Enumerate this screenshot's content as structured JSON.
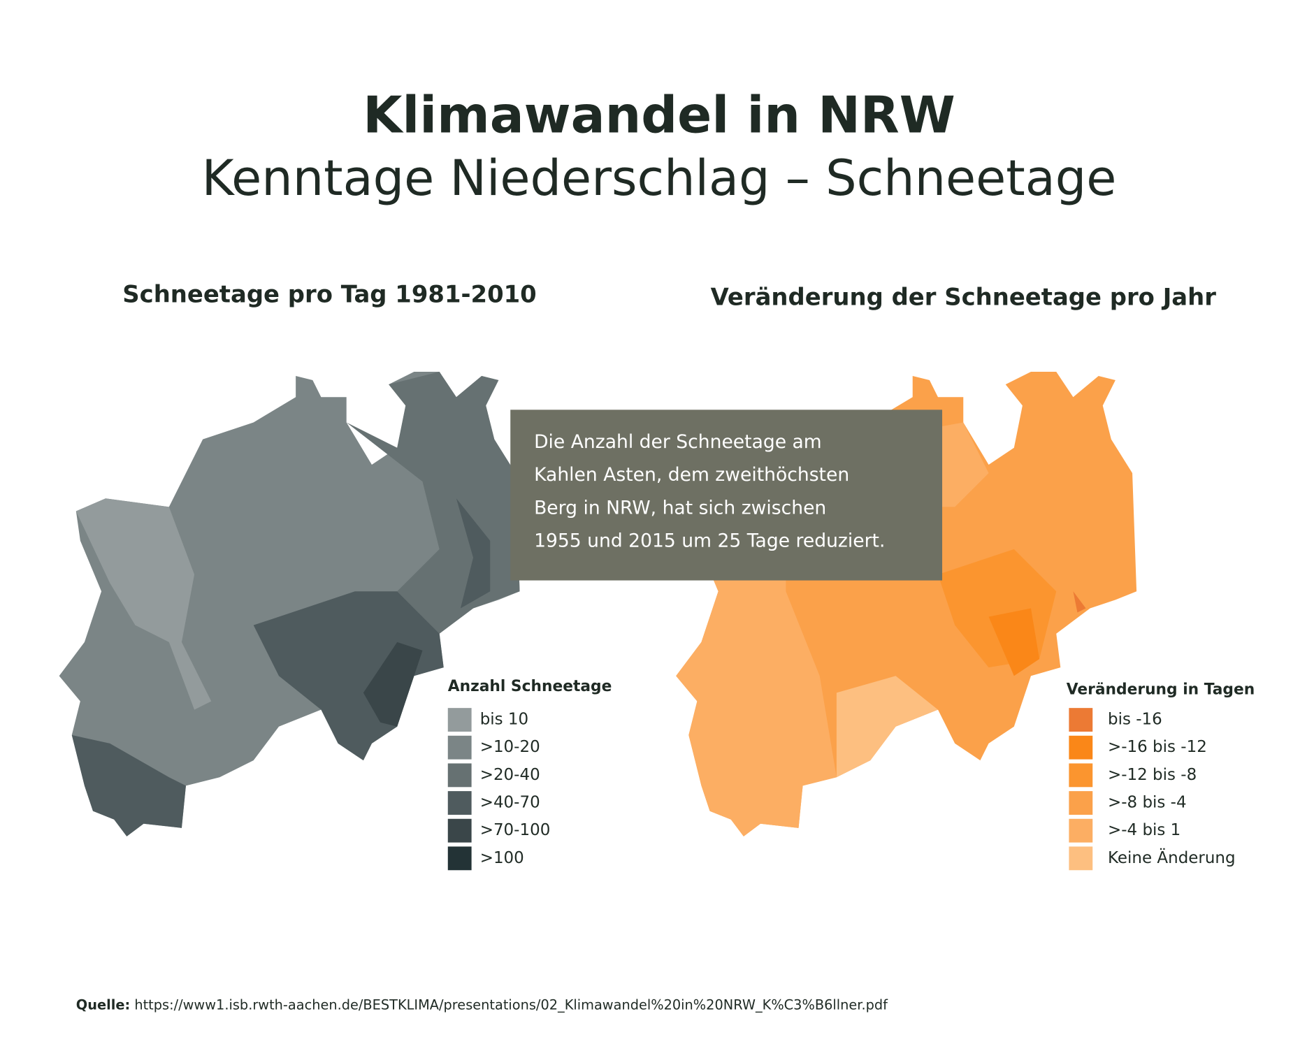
{
  "title": "Klimawandel in NRW",
  "subtitle": "Kenntage Niederschlag – Schneetage",
  "maps": [
    {
      "title": "Schneetage pro Tag 1981-2010",
      "legend": {
        "title": "Anzahl Schneetage",
        "items": [
          {
            "label": "bis 10",
            "color": "#939b9c"
          },
          {
            "label": ">10-20",
            "color": "#7b8586"
          },
          {
            "label": ">20-40",
            "color": "#667172"
          },
          {
            "label": ">40-70",
            "color": "#4f5b5e"
          },
          {
            "label": ">70-100",
            "color": "#3a4649"
          },
          {
            "label": ">100",
            "color": "#233336"
          }
        ]
      }
    },
    {
      "title": "Veränderung der Schneetage pro Jahr",
      "legend": {
        "title": "Veränderung in Tagen",
        "items": [
          {
            "label": "bis -16",
            "color": "#ec7a34"
          },
          {
            "label": ">-16 bis -12",
            "color": "#fa8718"
          },
          {
            "label": ">-12 bis -8",
            "color": "#fb952f"
          },
          {
            "label": ">-8 bis -4",
            "color": "#fba14a"
          },
          {
            "label": ">-4 bis 1",
            "color": "#fcae63"
          },
          {
            "label": "Keine Änderung",
            "color": "#fdbf80"
          }
        ]
      }
    }
  ],
  "callout": {
    "lines": [
      "Die Anzahl der Schneetage am",
      "Kahlen Asten, dem zweithöchsten",
      "Berg in NRW, hat sich zwischen",
      "1955 und 2015 um 25 Tage reduziert."
    ]
  },
  "source": {
    "label": "Quelle:",
    "url": "https://www1.isb.rwth-aachen.de/BESTKLIMA/presentations/02_Klimawandel%20in%20NRW_K%C3%B6llner.pdf"
  }
}
